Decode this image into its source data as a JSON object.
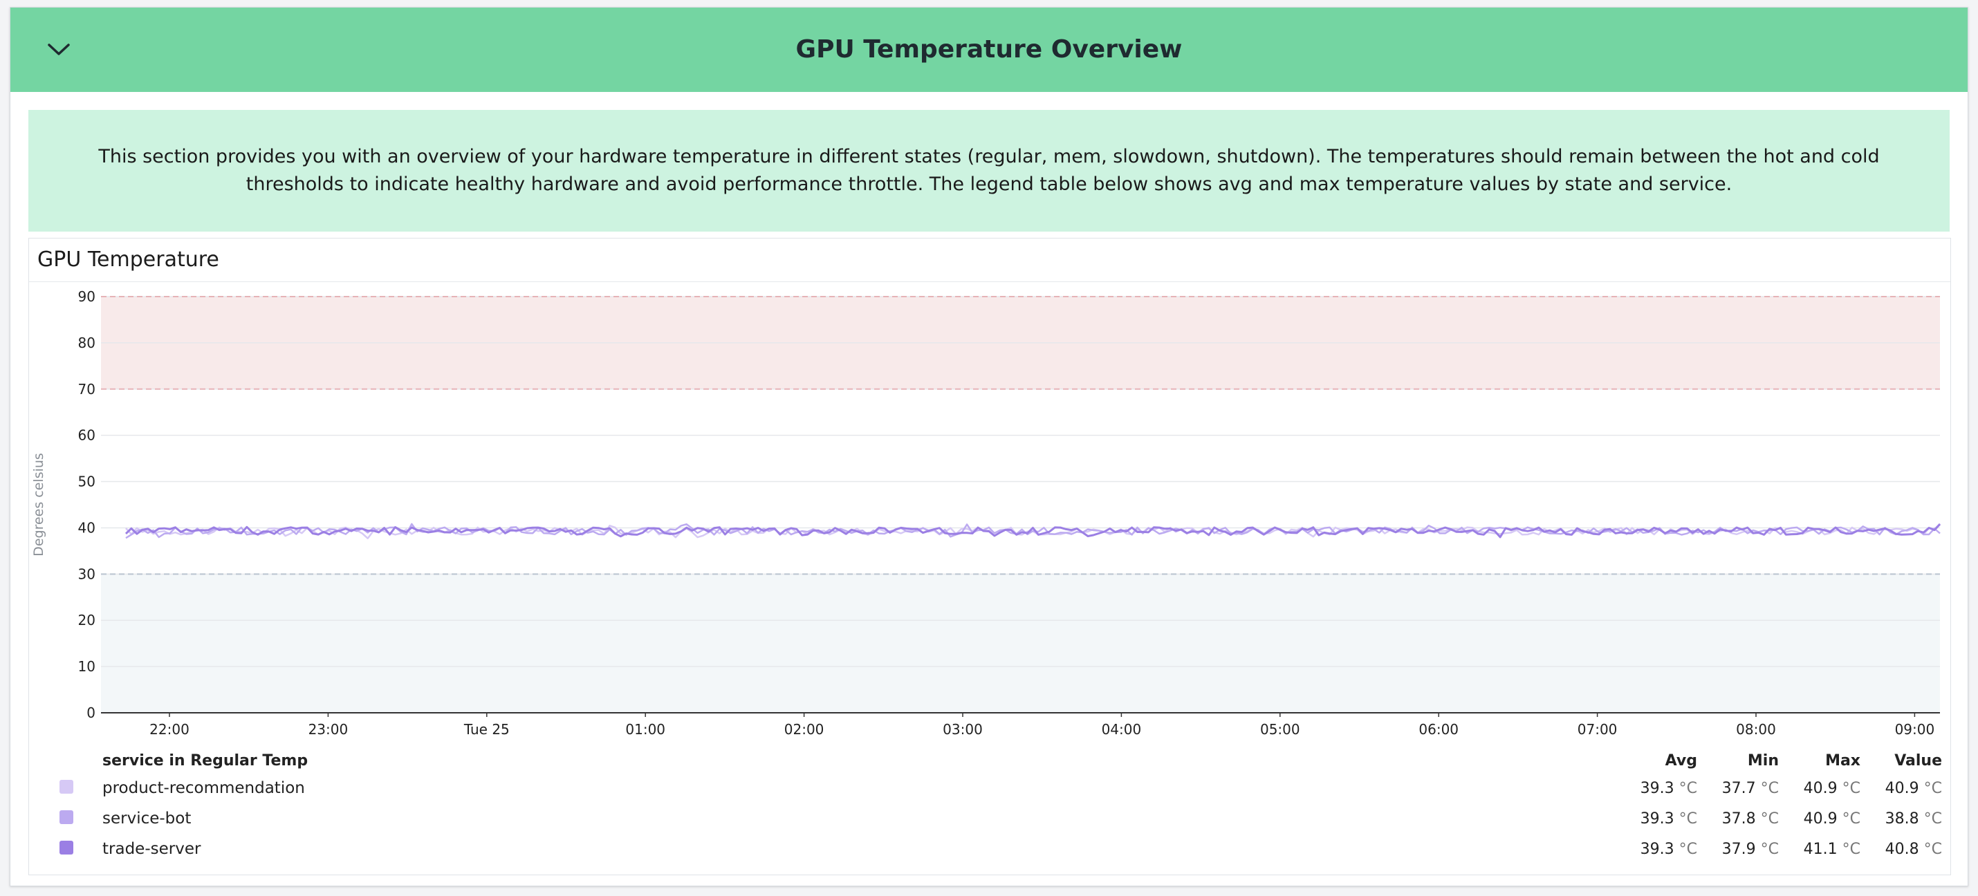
{
  "group": {
    "title": "GPU Temperature Overview",
    "collapse_icon": "chevron-down-icon"
  },
  "note": {
    "text": "This section provides you with an overview of your hardware temperature in different states (regular, mem, slowdown, shutdown). The temperatures should remain between the hot and cold thresholds to indicate healthy hardware and avoid performance throttle. The legend table below shows avg and max temperature values by state and service."
  },
  "widget": {
    "title": "GPU Temperature"
  },
  "chart_data": {
    "type": "line",
    "title": "GPU Temperature",
    "ylabel": "Degrees celsius",
    "ylim": [
      0,
      90
    ],
    "y_ticks": [
      "0",
      "10",
      "20",
      "30",
      "40",
      "50",
      "60",
      "70",
      "80",
      "90"
    ],
    "x_ticks": [
      "22:00",
      "23:00",
      "Tue 25",
      "01:00",
      "02:00",
      "03:00",
      "04:00",
      "05:00",
      "06:00",
      "07:00",
      "08:00",
      "09:00"
    ],
    "x_range": [
      "Mon 21:35",
      "Tue 09:13"
    ],
    "thresholds": {
      "hot": {
        "from": 70,
        "to": 90,
        "color": "#f8eaea",
        "line": "#e6b3b7"
      },
      "cold": {
        "from": 0,
        "to": 30,
        "color": "#f3f7f9",
        "line": "#b9c3cf"
      }
    },
    "grid": true,
    "legend_position": "bottom",
    "legend_header": "service in Regular Temp",
    "legend_columns": [
      "Avg",
      "Min",
      "Max",
      "Value"
    ],
    "unit": "°C",
    "series": [
      {
        "name": "product-recommendation",
        "color": "#d6c9f5",
        "avg": "39.3",
        "min": "37.7",
        "max": "40.9",
        "value": "40.9",
        "level": 39.3
      },
      {
        "name": "service-bot",
        "color": "#bcaaf0",
        "avg": "39.3",
        "min": "37.8",
        "max": "40.9",
        "value": "38.8",
        "level": 39.3
      },
      {
        "name": "trade-server",
        "color": "#9b7fe4",
        "avg": "39.3",
        "min": "37.9",
        "max": "41.1",
        "value": "40.8",
        "level": 39.3
      }
    ]
  }
}
